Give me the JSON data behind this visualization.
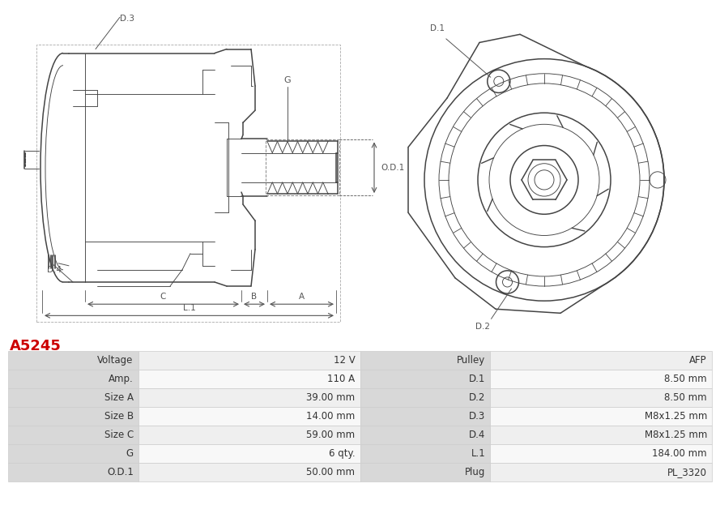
{
  "title": "A5245",
  "title_color": "#cc0000",
  "background_color": "#ffffff",
  "table_data": [
    [
      "Voltage",
      "12 V",
      "Pulley",
      "AFP"
    ],
    [
      "Amp.",
      "110 A",
      "D.1",
      "8.50 mm"
    ],
    [
      "Size A",
      "39.00 mm",
      "D.2",
      "8.50 mm"
    ],
    [
      "Size B",
      "14.00 mm",
      "D.3",
      "M8x1.25 mm"
    ],
    [
      "Size C",
      "59.00 mm",
      "D.4",
      "M8x1.25 mm"
    ],
    [
      "G",
      "6 qty.",
      "L.1",
      "184.00 mm"
    ],
    [
      "O.D.1",
      "50.00 mm",
      "Plug",
      "PL_3320"
    ]
  ],
  "lc": "#444444",
  "lc2": "#666666",
  "text_color": "#333333",
  "dim_color": "#555555"
}
